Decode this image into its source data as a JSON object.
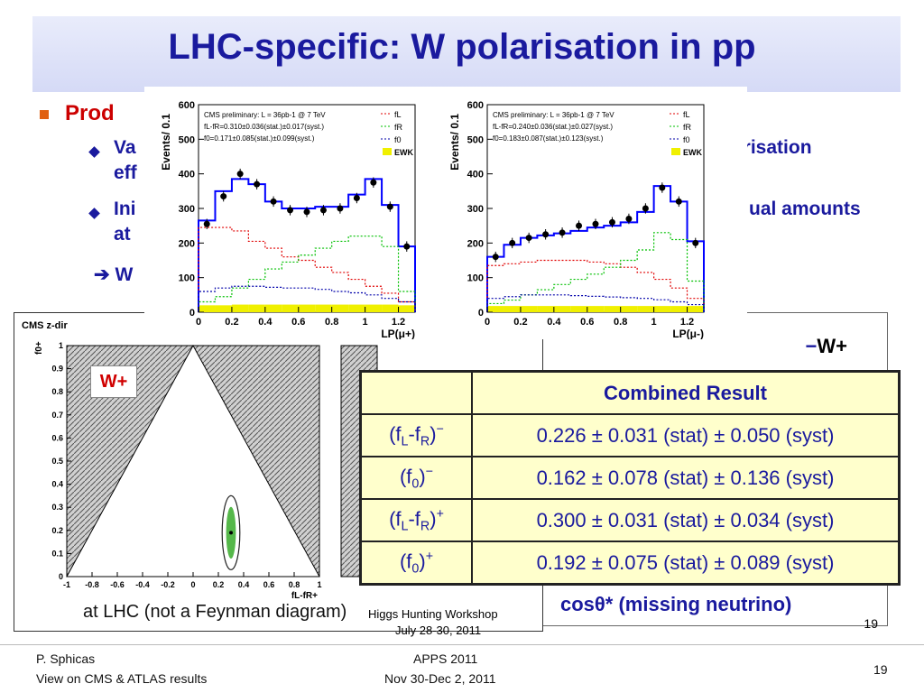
{
  "slide": {
    "title": "LHC-specific: W polarisation in pp",
    "bullet_main": "Prod",
    "sub1_a": "Va",
    "sub1_b": "eff",
    "sub1_tail": "arisation",
    "sub2_a": "Ini",
    "sub2_b": "at",
    "sub2_tail": "ual amounts",
    "arrow_text": "W",
    "page_number": "19"
  },
  "overlay_text": {
    "cms_zdir": "CMS z-dir",
    "wplus_badge": "W+",
    "right_header": "W+",
    "caption": "at LHC (not a Feynman diagram)",
    "workshop_line1": "Higgs Hunting Workshop",
    "workshop_line2": "July 28-30, 2011",
    "costheta": "cosθ* (missing neutrino)",
    "inner_page": "19"
  },
  "table": {
    "header": "Combined Result",
    "rows": [
      {
        "label": "(fL-fR)−",
        "value": "0.226 ± 0.031 (stat) ± 0.050 (syst)"
      },
      {
        "label": "(f0)−",
        "value": "0.162 ± 0.078 (stat) ± 0.136 (syst)"
      },
      {
        "label": "(fL-fR)+",
        "value": "0.300 ± 0.031 (stat) ± 0.034 (syst)"
      },
      {
        "label": "(f0)+",
        "value": "0.192 ± 0.075 (stat) ± 0.089 (syst)"
      }
    ]
  },
  "footer": {
    "left1": "P. Sphicas",
    "left2": "View on CMS & ATLAS results",
    "center1": "APPS 2011",
    "center2": "Nov 30-Dec 2, 2011",
    "right": "19"
  },
  "chart_data": [
    {
      "type": "bar",
      "title": "",
      "ylabel": "Events/ 0.1",
      "xlabel": "LP(μ+)",
      "ylim": [
        0,
        600
      ],
      "xlim": [
        0,
        1.3
      ],
      "xticks": [
        "0",
        "0.2",
        "0.4",
        "0.6",
        "0.8",
        "1",
        "1.2"
      ],
      "yticks": [
        "0",
        "100",
        "200",
        "300",
        "400",
        "500",
        "600"
      ],
      "annotation": [
        "CMS preliminary: L = 36pb-1 @ 7 TeV",
        "fL-fR=0.310±0.036(stat.)±0.017(syst.)",
        "f0=0.171±0.085(stat.)±0.099(syst.)"
      ],
      "legend": [
        "fL",
        "fR",
        "f0",
        "EWK"
      ],
      "bin_edges": [
        0,
        0.1,
        0.2,
        0.3,
        0.4,
        0.5,
        0.6,
        0.7,
        0.8,
        0.9,
        1.0,
        1.1,
        1.2,
        1.3
      ],
      "data": [
        255,
        335,
        400,
        370,
        320,
        295,
        290,
        295,
        300,
        330,
        375,
        305,
        190
      ],
      "series": [
        {
          "name": "total",
          "color": "#0000ff",
          "values": [
            265,
            350,
            385,
            370,
            320,
            300,
            300,
            305,
            305,
            340,
            385,
            310,
            190
          ]
        },
        {
          "name": "fL",
          "color": "#e00000",
          "values": [
            245,
            245,
            235,
            205,
            185,
            160,
            150,
            130,
            115,
            95,
            75,
            55,
            30
          ]
        },
        {
          "name": "fR",
          "color": "#00c000",
          "values": [
            30,
            45,
            70,
            95,
            125,
            145,
            165,
            185,
            205,
            220,
            220,
            190,
            60
          ]
        },
        {
          "name": "f0",
          "color": "#0000aa",
          "values": [
            60,
            70,
            75,
            75,
            72,
            70,
            70,
            66,
            60,
            56,
            50,
            40,
            30
          ]
        },
        {
          "name": "EWK",
          "color": "#f0f000",
          "values": [
            20,
            20,
            22,
            22,
            22,
            22,
            22,
            22,
            22,
            22,
            22,
            22,
            20
          ]
        }
      ]
    },
    {
      "type": "bar",
      "title": "",
      "ylabel": "Events/ 0.1",
      "xlabel": "LP(μ-)",
      "ylim": [
        0,
        600
      ],
      "xlim": [
        0,
        1.3
      ],
      "xticks": [
        "0",
        "0.2",
        "0.4",
        "0.6",
        "0.8",
        "1",
        "1.2"
      ],
      "yticks": [
        "0",
        "100",
        "200",
        "300",
        "400",
        "500",
        "600"
      ],
      "annotation": [
        "CMS preliminary: L = 36pb-1 @ 7 TeV",
        "fL-fR=0.240±0.036(stat.)±0.027(syst.)",
        "f0=0.183±0.087(stat.)±0.123(syst.)"
      ],
      "legend": [
        "fL",
        "fR",
        "f0",
        "EWK"
      ],
      "bin_edges": [
        0,
        0.1,
        0.2,
        0.3,
        0.4,
        0.5,
        0.6,
        0.7,
        0.8,
        0.9,
        1.0,
        1.1,
        1.2,
        1.3
      ],
      "data": [
        160,
        200,
        215,
        225,
        230,
        250,
        255,
        260,
        270,
        300,
        360,
        320,
        200
      ],
      "series": [
        {
          "name": "total",
          "color": "#0000ff",
          "values": [
            160,
            195,
            215,
            222,
            228,
            235,
            245,
            250,
            260,
            290,
            365,
            320,
            205
          ]
        },
        {
          "name": "fL",
          "color": "#e00000",
          "values": [
            135,
            140,
            145,
            150,
            150,
            150,
            145,
            140,
            130,
            115,
            95,
            70,
            40
          ]
        },
        {
          "name": "fR",
          "color": "#00c000",
          "values": [
            25,
            35,
            50,
            65,
            80,
            95,
            110,
            130,
            150,
            180,
            230,
            210,
            90
          ]
        },
        {
          "name": "f0",
          "color": "#0000aa",
          "values": [
            40,
            45,
            50,
            50,
            50,
            48,
            46,
            44,
            42,
            40,
            36,
            30,
            22
          ]
        },
        {
          "name": "EWK",
          "color": "#f0f000",
          "values": [
            18,
            18,
            18,
            18,
            18,
            18,
            18,
            18,
            18,
            18,
            18,
            18,
            18
          ]
        }
      ]
    },
    {
      "type": "scatter",
      "title": "",
      "xlabel": "fL-fR+",
      "ylabel": "f0+",
      "xlim": [
        -1,
        1
      ],
      "ylim": [
        0,
        1
      ],
      "xticks": [
        "-1",
        "-0.8",
        "-0.6",
        "-0.4",
        "-0.2",
        "0",
        "0.2",
        "0.4",
        "0.6",
        "0.8",
        "1"
      ],
      "yticks": [
        "0",
        "0.1",
        "0.2",
        "0.3",
        "0.4",
        "0.5",
        "0.6",
        "0.7",
        "0.8",
        "0.9",
        "1"
      ],
      "points": [
        {
          "x": 0.3,
          "y": 0.19
        }
      ],
      "contour": {
        "center": [
          0.3,
          0.19
        ],
        "rx": 0.07,
        "ry": 0.16
      }
    }
  ]
}
